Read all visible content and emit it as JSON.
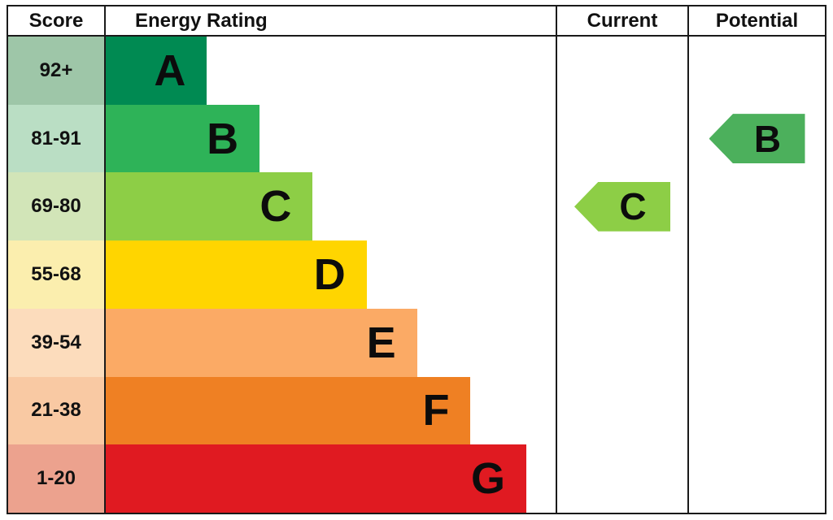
{
  "header": {
    "score": "Score",
    "energy_rating": "Energy Rating",
    "current": "Current",
    "potential": "Potential"
  },
  "chart_data": {
    "type": "bar",
    "subtype": "epc-energy-rating-chart",
    "title": "",
    "columns": [
      "Score",
      "Energy Rating",
      "Current",
      "Potential"
    ],
    "bands": [
      {
        "letter": "A",
        "score": "92+",
        "bar_color": "#008a52",
        "score_bg": "#9ec6a8",
        "bar_width_pct": 22.5
      },
      {
        "letter": "B",
        "score": "81-91",
        "bar_color": "#2eb358",
        "score_bg": "#badec4",
        "bar_width_pct": 34.2
      },
      {
        "letter": "C",
        "score": "69-80",
        "bar_color": "#8dce46",
        "score_bg": "#d2e5b8",
        "bar_width_pct": 46.0
      },
      {
        "letter": "D",
        "score": "55-68",
        "bar_color": "#ffd500",
        "score_bg": "#fbeeae",
        "bar_width_pct": 58.0
      },
      {
        "letter": "E",
        "score": "39-54",
        "bar_color": "#fbaa65",
        "score_bg": "#fcdcbc",
        "bar_width_pct": 69.2
      },
      {
        "letter": "F",
        "score": "21-38",
        "bar_color": "#ef8023",
        "score_bg": "#f9c9a3",
        "bar_width_pct": 81.1
      },
      {
        "letter": "G",
        "score": "1-20",
        "bar_color": "#e01a21",
        "score_bg": "#eca28e",
        "bar_width_pct": 93.5
      }
    ],
    "current": {
      "value": "C",
      "arrow_color": "#8dce46"
    },
    "potential": {
      "value": "B",
      "arrow_color": "#4cb05c"
    },
    "legend": "none",
    "grid": "off"
  }
}
